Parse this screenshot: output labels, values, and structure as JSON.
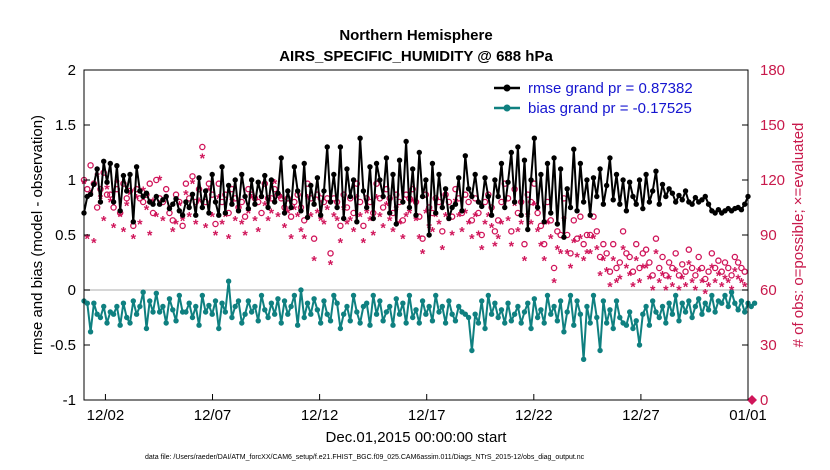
{
  "chart_data": {
    "type": "line",
    "title": "Northern Hemisphere",
    "subtitle": "AIRS_SPECIFIC_HUMIDITY @ 688 hPa",
    "xlabel": "Dec.01,2015 00:00:00 start",
    "ylabel": "rmse and bias (model - observation)",
    "ylabel_right": "# of obs: o=possible; ×=evaluated",
    "ylim": [
      -1,
      2
    ],
    "ylim_right": [
      0,
      180
    ],
    "xlim": [
      0,
      31
    ],
    "yticks": [
      "-1",
      "-0.5",
      "0",
      "0.5",
      "1",
      "1.5",
      "2"
    ],
    "yticks_right": [
      "0",
      "30",
      "60",
      "90",
      "120",
      "150",
      "180"
    ],
    "xticks": [
      {
        "value": 1,
        "label": "12/02"
      },
      {
        "value": 6,
        "label": "12/07"
      },
      {
        "value": 11,
        "label": "12/12"
      },
      {
        "value": 16,
        "label": "12/17"
      },
      {
        "value": 21,
        "label": "12/22"
      },
      {
        "value": 26,
        "label": "12/27"
      },
      {
        "value": 31,
        "label": "01/01"
      }
    ],
    "legend_position": "top-right",
    "series": [
      {
        "name": "rmse grand pr = 0.87382",
        "axis": "left",
        "color": "#000000",
        "values": [
          0.7,
          0.85,
          0.87,
          0.96,
          1.1,
          0.8,
          1.17,
          0.98,
          1.15,
          0.8,
          1.13,
          0.72,
          1.04,
          0.9,
          1.05,
          0.62,
          1.12,
          0.9,
          0.85,
          0.88,
          0.8,
          0.78,
          0.85,
          0.78,
          0.82,
          0.85,
          0.74,
          0.78,
          0.83,
          0.72,
          0.68,
          0.8,
          0.75,
          0.87,
          0.68,
          1.02,
          0.75,
          0.9,
          0.7,
          1.05,
          0.8,
          0.68,
          1.12,
          0.7,
          0.95,
          0.78,
          1.0,
          0.72,
          1.05,
          0.85,
          0.74,
          1.0,
          0.78,
          0.98,
          0.85,
          1.04,
          0.75,
          1.0,
          0.8,
          0.88,
          1.2,
          0.7,
          0.9,
          0.75,
          1.12,
          0.9,
          0.72,
          1.15,
          0.66,
          0.95,
          0.78,
          1.02,
          0.68,
          0.9,
          1.3,
          0.8,
          1.05,
          0.75,
          1.3,
          0.65,
          1.1,
          0.85,
          1.0,
          0.62,
          1.38,
          0.9,
          0.75,
          1.12,
          0.65,
          1.15,
          1.0,
          0.85,
          1.2,
          0.7,
          1.05,
          0.6,
          1.18,
          0.8,
          1.35,
          0.75,
          1.1,
          0.68,
          1.25,
          0.85,
          1.0,
          0.5,
          1.15,
          0.7,
          1.05,
          0.75,
          0.92,
          0.65,
          0.75,
          0.78,
          1.02,
          0.72,
          1.22,
          0.92,
          0.85,
          1.05,
          0.8,
          0.76,
          1.02,
          0.85,
          0.68,
          1.0,
          0.85,
          1.15,
          0.75,
          0.98,
          1.25,
          0.8,
          1.3,
          0.68,
          1.18,
          0.55,
          1.0,
          1.38,
          0.75,
          1.05,
          0.62,
          1.15,
          0.7,
          1.2,
          0.6,
          1.1,
          0.48,
          0.92,
          0.75,
          1.28,
          0.72,
          1.15,
          0.8,
          1.0,
          0.68,
          1.02,
          0.85,
          1.1,
          0.78,
          0.95,
          1.2,
          0.82,
          1.05,
          0.78,
          1.0,
          0.72,
          0.98,
          0.85,
          0.78,
          1.0,
          0.74,
          1.05,
          0.8,
          0.9,
          1.08,
          0.78,
          0.96,
          0.85,
          0.92,
          0.88,
          0.8,
          0.86,
          0.82,
          0.9,
          0.8,
          0.78,
          0.84,
          0.8,
          0.82,
          0.85,
          0.78,
          0.72,
          0.7,
          0.73,
          0.7,
          0.72,
          0.74,
          0.72,
          0.74,
          0.75,
          0.73,
          0.78,
          0.85
        ]
      },
      {
        "name": "bias grand pr = -0.17525",
        "axis": "left",
        "color": "#0f8080",
        "values": [
          -0.1,
          -0.12,
          -0.38,
          -0.12,
          -0.22,
          -0.25,
          -0.15,
          -0.3,
          -0.2,
          -0.22,
          -0.15,
          -0.32,
          -0.12,
          -0.25,
          -0.3,
          -0.1,
          -0.22,
          -0.15,
          -0.02,
          -0.35,
          -0.1,
          -0.2,
          -0.03,
          -0.2,
          -0.15,
          -0.3,
          -0.08,
          -0.18,
          -0.28,
          -0.05,
          -0.2,
          -0.2,
          -0.12,
          -0.25,
          -0.15,
          -0.32,
          -0.05,
          -0.2,
          -0.14,
          -0.22,
          -0.1,
          -0.35,
          -0.12,
          -0.2,
          0.08,
          -0.25,
          -0.15,
          -0.1,
          -0.3,
          -0.22,
          -0.1,
          -0.2,
          -0.15,
          -0.28,
          -0.05,
          -0.18,
          -0.25,
          -0.12,
          -0.22,
          -0.08,
          -0.3,
          -0.1,
          -0.22,
          -0.15,
          -0.05,
          -0.32,
          0.0,
          -0.25,
          -0.12,
          -0.22,
          -0.08,
          -0.18,
          -0.3,
          -0.1,
          -0.22,
          -0.28,
          -0.05,
          -0.12,
          -0.35,
          -0.22,
          -0.15,
          -0.28,
          -0.05,
          -0.2,
          -0.3,
          -0.15,
          -0.12,
          -0.32,
          -0.05,
          -0.22,
          -0.1,
          -0.28,
          -0.2,
          -0.15,
          -0.32,
          -0.08,
          -0.22,
          -0.12,
          -0.3,
          -0.05,
          -0.25,
          -0.18,
          -0.3,
          -0.1,
          -0.22,
          -0.15,
          -0.28,
          -0.05,
          -0.2,
          -0.15,
          -0.3,
          -0.1,
          -0.22,
          -0.28,
          -0.15,
          -0.2,
          -0.22,
          -0.25,
          -0.55,
          -0.22,
          -0.3,
          -0.1,
          -0.35,
          -0.05,
          -0.22,
          -0.12,
          -0.25,
          -0.18,
          -0.3,
          -0.12,
          -0.28,
          -0.22,
          -0.15,
          -0.3,
          -0.2,
          -0.12,
          -0.35,
          -0.08,
          -0.25,
          -0.18,
          -0.3,
          -0.05,
          -0.22,
          -0.15,
          -0.28,
          -0.1,
          -0.38,
          -0.2,
          -0.05,
          -0.32,
          -0.1,
          -0.22,
          -0.63,
          -0.15,
          -0.3,
          -0.05,
          -0.25,
          -0.55,
          -0.1,
          -0.3,
          -0.18,
          -0.35,
          -0.1,
          -0.25,
          -0.3,
          -0.32,
          -0.2,
          -0.35,
          -0.28,
          -0.5,
          -0.22,
          -0.15,
          -0.32,
          -0.1,
          -0.2,
          -0.25,
          -0.15,
          -0.3,
          -0.12,
          -0.22,
          -0.05,
          -0.28,
          -0.12,
          -0.2,
          -0.1,
          -0.25,
          -0.15,
          -0.08,
          -0.22,
          -0.12,
          -0.18,
          -0.05,
          -0.2,
          -0.1,
          -0.12,
          -0.05,
          -0.15,
          -0.02,
          -0.12,
          -0.18,
          -0.1,
          -0.2,
          -0.12,
          -0.15,
          -0.12
        ]
      },
      {
        "name": "possible obs",
        "axis": "right",
        "marker": "o",
        "color": "#d0155a",
        "values": [
          120,
          115,
          128,
          118,
          105,
          115,
          124,
          112,
          112,
          105,
          115,
          102,
          118,
          110,
          114,
          95,
          115,
          110,
          108,
          112,
          118,
          102,
          120,
          110,
          108,
          115,
          102,
          98,
          112,
          108,
          95,
          118,
          110,
          122,
          108,
          115,
          138,
          108,
          118,
          112,
          96,
          118,
          108,
          112,
          102,
          115,
          110,
          105,
          108,
          100,
          115,
          112,
          110,
          108,
          102,
          118,
          110,
          110,
          115,
          112,
          110,
          105,
          110,
          100,
          108,
          112,
          105,
          98,
          118,
          110,
          88,
          112,
          110,
          108,
          110,
          80,
          110,
          108,
          95,
          112,
          105,
          110,
          102,
          118,
          108,
          95,
          110,
          108,
          102,
          118,
          110,
          105,
          115,
          110,
          102,
          112,
          108,
          98,
          112,
          110,
          115,
          108,
          100,
          88,
          112,
          105,
          102,
          110,
          108,
          92,
          112,
          108,
          100,
          115,
          110,
          102,
          112,
          108,
          98,
          110,
          102,
          90,
          108,
          112,
          105,
          92,
          98,
          108,
          118,
          110,
          92,
          115,
          102,
          108,
          85,
          112,
          108,
          118,
          102,
          95,
          85,
          108,
          98,
          72,
          92,
          90,
          110,
          90,
          80,
          98,
          88,
          100,
          85,
          90,
          90,
          100,
          92,
          78,
          85,
          80,
          70,
          85,
          72,
          75,
          92,
          80,
          78,
          70,
          85,
          72,
          80,
          82,
          75,
          68,
          88,
          72,
          78,
          68,
          75,
          72,
          80,
          68,
          74,
          70,
          82,
          72,
          68,
          78,
          72,
          66,
          70,
          80,
          72,
          76,
          70,
          75,
          72,
          68,
          78,
          75,
          72,
          70
        ]
      },
      {
        "name": "evaluated obs",
        "axis": "right",
        "marker": "*",
        "color": "#d0155a",
        "values": [
          118,
          88,
          112,
          86,
          122,
          110,
          98,
          115,
          108,
          94,
          118,
          100,
          92,
          106,
          112,
          88,
          110,
          96,
          114,
          104,
          90,
          108,
          100,
          120,
          98,
          110,
          104,
          92,
          96,
          106,
          98,
          112,
          100,
          118,
          96,
          108,
          132,
          94,
          114,
          100,
          90,
          110,
          96,
          100,
          88,
          108,
          98,
          104,
          96,
          90,
          102,
          110,
          98,
          92,
          110,
          106,
          98,
          102,
          118,
          100,
          110,
          94,
          102,
          88,
          104,
          100,
          92,
          88,
          110,
          100,
          76,
          102,
          98,
          96,
          104,
          74,
          100,
          98,
          86,
          104,
          96,
          98,
          92,
          110,
          100,
          86,
          102,
          98,
          90,
          110,
          100,
          94,
          106,
          98,
          92,
          104,
          96,
          88,
          100,
          102,
          108,
          98,
          88,
          80,
          102,
          94,
          92,
          100,
          96,
          82,
          100,
          98,
          90,
          108,
          100,
          92,
          102,
          96,
          88,
          100,
          90,
          82,
          96,
          100,
          94,
          84,
          88,
          96,
          108,
          98,
          84,
          106,
          92,
          96,
          76,
          100,
          96,
          106,
          92,
          84,
          76,
          96,
          88,
          64,
          82,
          80,
          98,
          80,
          72,
          86,
          78,
          88,
          76,
          80,
          80,
          88,
          82,
          68,
          76,
          70,
          62,
          76,
          64,
          66,
          82,
          72,
          68,
          62,
          76,
          64,
          72,
          72,
          66,
          60,
          80,
          64,
          68,
          60,
          66,
          62,
          70,
          60,
          66,
          62,
          74,
          64,
          60,
          70,
          64,
          58,
          62,
          72,
          64,
          68,
          62,
          66,
          64,
          60,
          70,
          66,
          64,
          62
        ]
      }
    ],
    "legend": [
      "rmse grand pr = 0.87382",
      "bias grand pr = -0.17525"
    ],
    "right_axis_end_marker": 0
  },
  "footer": {
    "data_file": "data file: /Users/raeder/DAI/ATM_forcXX/CAM6_setup/f.e21.FHIST_BGC.f09_025.CAM6assim.011/Diags_NTrS_2015-12/obs_diag_output.nc"
  },
  "colors": {
    "rmse": "#000000",
    "bias": "#0f8080",
    "obs": "#d0155a",
    "right_axis": "#c8194b",
    "legend_text": "#1515d0",
    "zero_line": "#c8c8c8"
  }
}
